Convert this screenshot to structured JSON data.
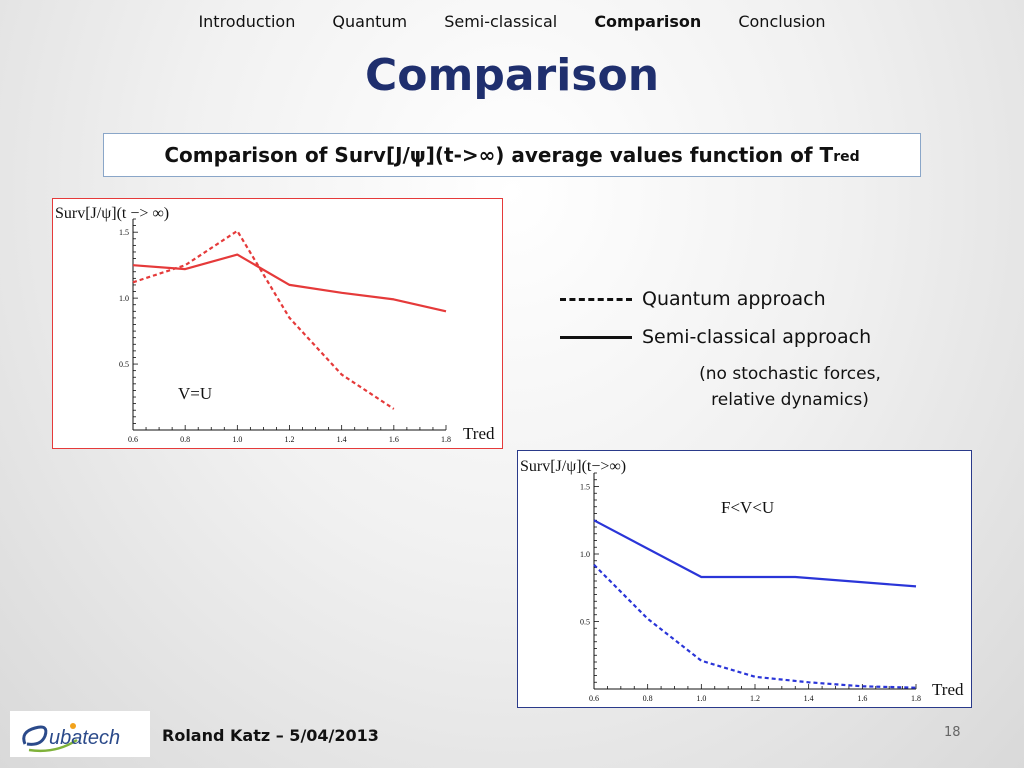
{
  "nav": [
    "Introduction",
    "Quantum",
    "Semi-classical",
    "Comparison",
    "Conclusion"
  ],
  "nav_active": "Comparison",
  "title": "Comparison",
  "subtitle": {
    "main": "Comparison of Surv[J/ψ](t->∞) average values function of T",
    "sub": "red"
  },
  "legend": {
    "quantum": "Quantum approach",
    "semiclassical": "Semi-classical approach",
    "note_line1": "(no stochastic forces,",
    "note_line2": "relative dynamics)"
  },
  "footer": {
    "author": "Roland Katz – 5/04/2013",
    "page": "18",
    "logo_text": "Subatech"
  },
  "colors": {
    "title": "#1f2f6e",
    "red": "#e53a3a",
    "blue": "#2a35d8"
  },
  "chart_data": [
    {
      "type": "line",
      "title": "Surv[J/ψ](t −> ∞)",
      "xlabel": "Tred",
      "annotation": "V=U",
      "xlim": [
        0.6,
        1.8
      ],
      "ylim": [
        0,
        1.6
      ],
      "xticks": [
        "0.6",
        "0.8",
        "1.0",
        "1.2",
        "1.4",
        "1.6",
        "1.8"
      ],
      "yticks": [
        "0.5",
        "1.0",
        "1.5"
      ],
      "color": "#e53a3a",
      "series": [
        {
          "style": "solid",
          "x": [
            0.6,
            0.8,
            1.0,
            1.2,
            1.4,
            1.6,
            1.8
          ],
          "y": [
            1.25,
            1.22,
            1.33,
            1.1,
            1.04,
            0.99,
            0.9
          ]
        },
        {
          "style": "dashed",
          "x": [
            0.6,
            0.8,
            1.0,
            1.2,
            1.4,
            1.6
          ],
          "y": [
            1.12,
            1.25,
            1.51,
            0.85,
            0.42,
            0.16
          ]
        }
      ]
    },
    {
      "type": "line",
      "title": "Surv[J/ψ](t−>∞)",
      "xlabel": "Tred",
      "annotation": "F<V<U",
      "xlim": [
        0.6,
        1.8
      ],
      "ylim": [
        0,
        1.6
      ],
      "xticks": [
        "0.6",
        "0.8",
        "1.0",
        "1.2",
        "1.4",
        "1.6",
        "1.8"
      ],
      "yticks": [
        "0.5",
        "1.0",
        "1.5"
      ],
      "color": "#2a35d8",
      "series": [
        {
          "style": "solid",
          "x": [
            0.6,
            1.0,
            1.35,
            1.8
          ],
          "y": [
            1.25,
            0.83,
            0.83,
            0.76
          ]
        },
        {
          "style": "dashed",
          "x": [
            0.6,
            0.8,
            1.0,
            1.2,
            1.4,
            1.6,
            1.8
          ],
          "y": [
            0.92,
            0.52,
            0.21,
            0.09,
            0.05,
            0.02,
            0.01
          ]
        }
      ]
    }
  ]
}
